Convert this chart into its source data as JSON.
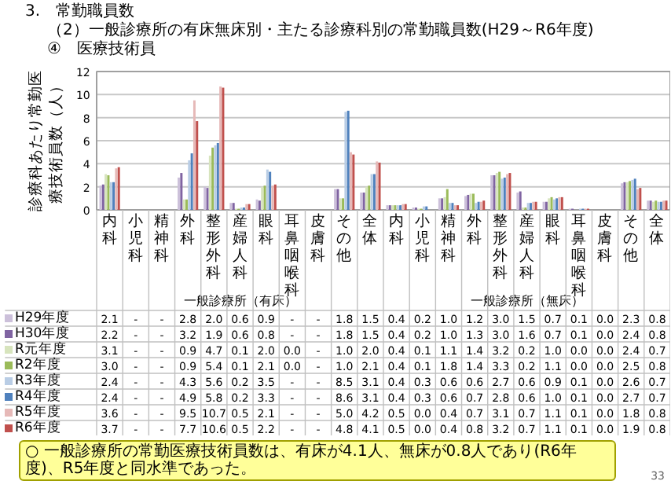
{
  "chart_data": {
    "type": "bar",
    "title": "3.　常勤職員数",
    "subtitle": "（2）一般診療所の有床無床別・主たる診療科別の常勤職員数(H29～R6年度)\n④　医療技術員",
    "ylabel": "診療科あたり常勤医療技術員数（人）",
    "categories": [
      "内科",
      "小児科",
      "精神科",
      "外科",
      "整形外科",
      "産婦人科",
      "眼科",
      "耳鼻咽喉科",
      "皮膚科",
      "その他",
      "全体",
      "内科",
      "小児科",
      "精神科",
      "外科",
      "整形外科",
      "産婦人科",
      "眼科",
      "耳鼻咽喉科",
      "皮膚科",
      "その他",
      "全体"
    ],
    "ylim": [
      0,
      12
    ],
    "yticks": [
      0,
      2,
      4,
      6,
      8,
      10,
      12
    ],
    "grid": "y",
    "legend": "bottom",
    "annotations": [
      "一般診療所（有床）",
      "一般診療所（無床）",
      "○ 一般診療所の常勤医療技術員数は、有床が4.1人、無床が0.8人であり(R6年度)、R5年度と同水準であった。",
      "33"
    ],
    "series": [
      {
        "name": "H29年度",
        "color": "#ccc0da",
        "values": [
          2.1,
          null,
          null,
          2.8,
          2.0,
          0.6,
          0.9,
          null,
          null,
          1.8,
          1.5,
          0.4,
          0.2,
          1.0,
          1.2,
          3.0,
          1.5,
          0.7,
          0.1,
          0.0,
          2.3,
          0.8
        ],
        "value_labels": [
          "2.1",
          "-",
          "-",
          "2.8",
          "2.0",
          "0.6",
          "0.9",
          "-",
          "-",
          "1.8",
          "1.5",
          "0.4",
          "0.2",
          "1.0",
          "1.2",
          "3.0",
          "1.5",
          "0.7",
          "0.1",
          "0.0",
          "2.3",
          "0.8"
        ]
      },
      {
        "name": "H30年度",
        "color": "#8064a2",
        "values": [
          2.2,
          null,
          null,
          3.2,
          1.9,
          0.6,
          0.8,
          null,
          null,
          1.8,
          1.5,
          0.4,
          0.2,
          1.0,
          1.3,
          3.0,
          1.6,
          0.7,
          0.1,
          0.0,
          2.4,
          0.8
        ],
        "value_labels": [
          "2.2",
          "-",
          "-",
          "3.2",
          "1.9",
          "0.6",
          "0.8",
          "-",
          "-",
          "1.8",
          "1.5",
          "0.4",
          "0.2",
          "1.0",
          "1.3",
          "3.0",
          "1.6",
          "0.7",
          "0.1",
          "0.0",
          "2.4",
          "0.8"
        ]
      },
      {
        "name": "R元年度",
        "color": "#d7e4bd",
        "values": [
          3.1,
          null,
          null,
          0.9,
          4.7,
          0.1,
          2.0,
          0.0,
          null,
          1.0,
          2.0,
          0.4,
          0.1,
          1.1,
          1.4,
          3.2,
          0.2,
          1.0,
          0.0,
          0.0,
          2.4,
          0.7
        ],
        "value_labels": [
          "3.1",
          "-",
          "-",
          "0.9",
          "4.7",
          "0.1",
          "2.0",
          "0.0",
          "-",
          "1.0",
          "2.0",
          "0.4",
          "0.1",
          "1.1",
          "1.4",
          "3.2",
          "0.2",
          "1.0",
          "0.0",
          "0.0",
          "2.4",
          "0.7"
        ]
      },
      {
        "name": "R2年度",
        "color": "#9bbb59",
        "values": [
          3.0,
          null,
          null,
          0.9,
          5.4,
          0.1,
          2.1,
          0.0,
          null,
          1.0,
          2.1,
          0.4,
          0.1,
          1.8,
          1.4,
          3.3,
          0.2,
          1.1,
          0.0,
          0.0,
          2.5,
          0.8
        ],
        "value_labels": [
          "3.0",
          "-",
          "-",
          "0.9",
          "5.4",
          "0.1",
          "2.1",
          "0.0",
          "-",
          "1.0",
          "2.1",
          "0.4",
          "0.1",
          "1.8",
          "1.4",
          "3.3",
          "0.2",
          "1.1",
          "0.0",
          "0.0",
          "2.5",
          "0.8"
        ]
      },
      {
        "name": "R3年度",
        "color": "#b9cde5",
        "values": [
          2.4,
          null,
          null,
          4.3,
          5.6,
          0.2,
          3.5,
          null,
          null,
          8.5,
          3.1,
          0.4,
          0.3,
          0.6,
          0.6,
          2.7,
          0.6,
          0.9,
          0.1,
          0.0,
          2.6,
          0.7
        ],
        "value_labels": [
          "2.4",
          "-",
          "-",
          "4.3",
          "5.6",
          "0.2",
          "3.5",
          "-",
          "-",
          "8.5",
          "3.1",
          "0.4",
          "0.3",
          "0.6",
          "0.6",
          "2.7",
          "0.6",
          "0.9",
          "0.1",
          "0.0",
          "2.6",
          "0.7"
        ]
      },
      {
        "name": "R4年度",
        "color": "#4f81bd",
        "values": [
          2.4,
          null,
          null,
          4.9,
          5.8,
          0.2,
          3.3,
          null,
          null,
          8.6,
          3.1,
          0.4,
          0.3,
          0.6,
          0.7,
          2.8,
          0.6,
          1.0,
          0.1,
          0.0,
          2.7,
          0.7
        ],
        "value_labels": [
          "2.4",
          "-",
          "-",
          "4.9",
          "5.8",
          "0.2",
          "3.3",
          "-",
          "-",
          "8.6",
          "3.1",
          "0.4",
          "0.3",
          "0.6",
          "0.7",
          "2.8",
          "0.6",
          "1.0",
          "0.1",
          "0.0",
          "2.7",
          "0.7"
        ]
      },
      {
        "name": "R5年度",
        "color": "#e6b9b8",
        "values": [
          3.6,
          null,
          null,
          9.5,
          10.7,
          0.5,
          2.1,
          null,
          null,
          5.0,
          4.2,
          0.5,
          0.0,
          0.4,
          0.7,
          3.1,
          0.7,
          1.1,
          0.1,
          0.0,
          1.8,
          0.8
        ],
        "value_labels": [
          "3.6",
          "-",
          "-",
          "9.5",
          "10.7",
          "0.5",
          "2.1",
          "-",
          "-",
          "5.0",
          "4.2",
          "0.5",
          "0.0",
          "0.4",
          "0.7",
          "3.1",
          "0.7",
          "1.1",
          "0.1",
          "0.0",
          "1.8",
          "0.8"
        ]
      },
      {
        "name": "R6年度",
        "color": "#c0504d",
        "values": [
          3.7,
          null,
          null,
          7.7,
          10.6,
          0.5,
          2.2,
          null,
          null,
          4.8,
          4.1,
          0.5,
          0.0,
          0.4,
          0.8,
          3.2,
          0.7,
          1.1,
          0.1,
          0.0,
          1.9,
          0.8
        ],
        "value_labels": [
          "3.7",
          "-",
          "-",
          "7.7",
          "10.6",
          "0.5",
          "2.2",
          "-",
          "-",
          "4.8",
          "4.1",
          "0.5",
          "0.0",
          "0.4",
          "0.8",
          "3.2",
          "0.7",
          "1.1",
          "0.1",
          "0.0",
          "1.9",
          "0.8"
        ]
      }
    ]
  }
}
